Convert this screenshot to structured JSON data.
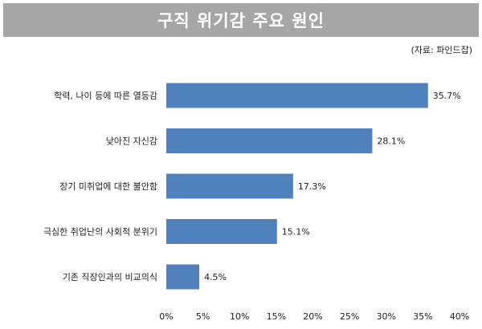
{
  "title": "구직 위기감 주요 원인",
  "source": "(자료: 파인드잡)",
  "chart_data": {
    "type": "bar",
    "orientation": "horizontal",
    "categories": [
      "학력, 나이 등에 따른 열등감",
      "낮아진 자신감",
      "장기 미취업에 대한 불안함",
      "극심한 취업난의 사회적 분위기",
      "기존 직장인과의 비교의식"
    ],
    "values": [
      35.7,
      28.1,
      17.3,
      15.1,
      4.5
    ],
    "value_labels": [
      "35.7%",
      "28.1%",
      "17.3%",
      "15.1%",
      "4.5%"
    ],
    "xlim": [
      0,
      40
    ],
    "xticks": [
      "0%",
      "5%",
      "10%",
      "15%",
      "20%",
      "25%",
      "30%",
      "35%",
      "40%"
    ],
    "xlabel": "",
    "ylabel": "",
    "bar_color": "#4f81bd",
    "grid": false,
    "legend": "none"
  }
}
